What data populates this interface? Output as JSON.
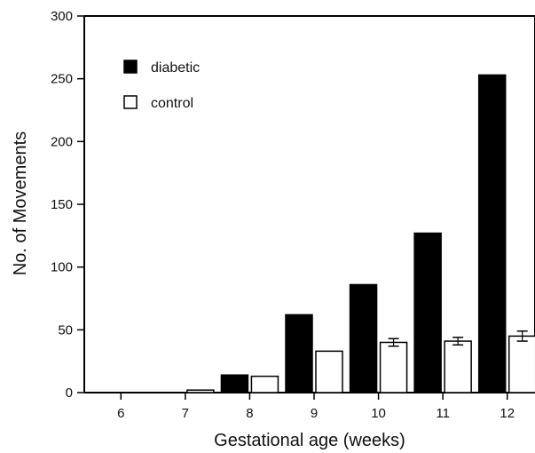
{
  "chart_data": {
    "type": "bar",
    "title": "",
    "xlabel": "Gestational age (weeks)",
    "ylabel": "No. of Movements",
    "categories": [
      "6",
      "7",
      "8",
      "9",
      "10",
      "11",
      "12"
    ],
    "series": [
      {
        "name": "diabetic",
        "color": "#000000",
        "values": [
          0,
          0,
          14,
          62,
          86,
          127,
          253
        ]
      },
      {
        "name": "control",
        "color": "#ffffff",
        "values": [
          0,
          2,
          13,
          33,
          40,
          41,
          45
        ],
        "error": [
          0,
          0,
          0,
          0,
          3,
          3,
          4
        ]
      }
    ],
    "ylim": [
      0,
      300
    ],
    "yticks": [
      0,
      50,
      100,
      150,
      200,
      250,
      300
    ],
    "grid": false,
    "legend_position": "top-left"
  }
}
